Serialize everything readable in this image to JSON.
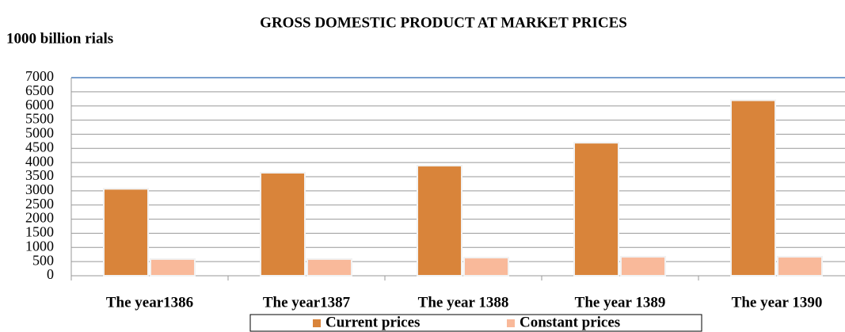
{
  "chart_data": {
    "type": "bar",
    "title": "GROSS DOMESTIC PRODUCT AT MARKET PRICES",
    "y_label": "1000 billion rials",
    "categories": [
      "The year1386",
      "The year1387",
      "The year 1388",
      "The year 1389",
      "The year 1390"
    ],
    "series": [
      {
        "name": "Current prices",
        "color": "#d9843a",
        "values": [
          3070,
          3640,
          3890,
          4700,
          6200
        ]
      },
      {
        "name": "Constant prices",
        "color": "#f9b99a",
        "values": [
          590,
          590,
          640,
          670,
          670
        ]
      }
    ],
    "ylim": [
      0,
      7000
    ],
    "yticks": [
      0,
      500,
      1000,
      1500,
      2000,
      2500,
      3000,
      3500,
      4000,
      4500,
      5000,
      5500,
      6000,
      6500,
      7000
    ],
    "grid": true,
    "legend": "bottom"
  }
}
